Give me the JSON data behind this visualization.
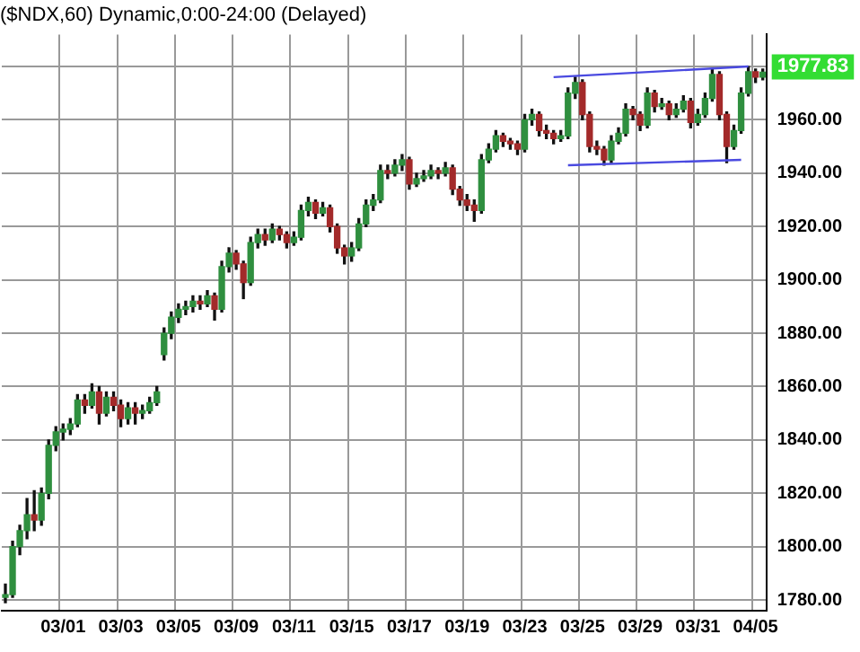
{
  "chart_data": {
    "type": "candlestick",
    "title": "($NDX,60) Dynamic,0:00-24:00 (Delayed)",
    "categories": [
      null,
      null,
      null,
      null,
      null,
      null,
      null,
      null,
      "03/01",
      null,
      null,
      null,
      null,
      null,
      null,
      null,
      "03/03",
      null,
      null,
      null,
      null,
      null,
      null,
      null,
      "03/05",
      null,
      null,
      null,
      null,
      null,
      null,
      null,
      "03/09",
      null,
      null,
      null,
      null,
      null,
      null,
      null,
      "03/11",
      null,
      null,
      null,
      null,
      null,
      null,
      null,
      "03/15",
      null,
      null,
      null,
      null,
      null,
      null,
      null,
      "03/17",
      null,
      null,
      null,
      null,
      null,
      null,
      null,
      "03/19",
      null,
      null,
      null,
      null,
      null,
      null,
      null,
      "03/23",
      null,
      null,
      null,
      null,
      null,
      null,
      null,
      "03/25",
      null,
      null,
      null,
      null,
      null,
      null,
      null,
      "03/29",
      null,
      null,
      null,
      null,
      null,
      null,
      null,
      "03/31",
      null,
      null,
      null,
      null,
      null,
      null,
      null,
      "04/05",
      null
    ],
    "ohlc": [
      [
        1781,
        1786,
        1779,
        1782
      ],
      [
        1782,
        1802,
        1781,
        1800
      ],
      [
        1800,
        1808,
        1797,
        1806
      ],
      [
        1806,
        1818,
        1803,
        1812
      ],
      [
        1812,
        1821,
        1806,
        1810
      ],
      [
        1810,
        1822,
        1808,
        1820
      ],
      [
        1820,
        1840,
        1818,
        1838
      ],
      [
        1838,
        1845,
        1836,
        1843
      ],
      [
        1843,
        1846,
        1840,
        1844
      ],
      [
        1844,
        1848,
        1842,
        1846
      ],
      [
        1846,
        1857,
        1845,
        1855
      ],
      [
        1855,
        1857,
        1850,
        1853
      ],
      [
        1853,
        1861,
        1852,
        1858
      ],
      [
        1858,
        1860,
        1846,
        1850
      ],
      [
        1850,
        1858,
        1849,
        1856
      ],
      [
        1856,
        1858,
        1851,
        1853
      ],
      [
        1853,
        1855,
        1845,
        1848
      ],
      [
        1848,
        1854,
        1846,
        1852
      ],
      [
        1852,
        1854,
        1846,
        1850
      ],
      [
        1850,
        1853,
        1848,
        1851
      ],
      [
        1851,
        1856,
        1850,
        1854
      ],
      [
        1854,
        1860,
        1853,
        1858
      ],
      [
        1872,
        1882,
        1870,
        1880
      ],
      [
        1880,
        1888,
        1878,
        1886
      ],
      [
        1886,
        1891,
        1884,
        1889
      ],
      [
        1889,
        1892,
        1887,
        1890
      ],
      [
        1890,
        1894,
        1888,
        1892
      ],
      [
        1892,
        1894,
        1889,
        1891
      ],
      [
        1891,
        1896,
        1890,
        1894
      ],
      [
        1894,
        1895,
        1885,
        1889
      ],
      [
        1889,
        1907,
        1888,
        1905
      ],
      [
        1905,
        1912,
        1903,
        1910
      ],
      [
        1910,
        1911,
        1904,
        1906
      ],
      [
        1906,
        1907,
        1893,
        1899
      ],
      [
        1899,
        1916,
        1898,
        1914
      ],
      [
        1914,
        1919,
        1912,
        1917
      ],
      [
        1917,
        1919,
        1913,
        1915
      ],
      [
        1915,
        1921,
        1914,
        1919
      ],
      [
        1919,
        1920,
        1915,
        1917
      ],
      [
        1917,
        1918,
        1912,
        1914
      ],
      [
        1914,
        1918,
        1913,
        1916
      ],
      [
        1916,
        1928,
        1915,
        1926
      ],
      [
        1926,
        1931,
        1924,
        1929
      ],
      [
        1929,
        1930,
        1923,
        1925
      ],
      [
        1925,
        1929,
        1924,
        1927
      ],
      [
        1927,
        1928,
        1918,
        1920
      ],
      [
        1920,
        1921,
        1910,
        1912
      ],
      [
        1912,
        1913,
        1906,
        1909
      ],
      [
        1909,
        1914,
        1907,
        1912
      ],
      [
        1912,
        1923,
        1911,
        1921
      ],
      [
        1921,
        1930,
        1920,
        1928
      ],
      [
        1928,
        1932,
        1926,
        1930
      ],
      [
        1930,
        1943,
        1929,
        1941
      ],
      [
        1941,
        1943,
        1938,
        1940
      ],
      [
        1940,
        1945,
        1939,
        1943
      ],
      [
        1943,
        1947,
        1941,
        1945
      ],
      [
        1945,
        1946,
        1934,
        1936
      ],
      [
        1936,
        1940,
        1935,
        1938
      ],
      [
        1938,
        1941,
        1937,
        1939
      ],
      [
        1939,
        1943,
        1938,
        1941
      ],
      [
        1941,
        1942,
        1938,
        1940
      ],
      [
        1940,
        1944,
        1939,
        1942
      ],
      [
        1942,
        1943,
        1932,
        1934
      ],
      [
        1934,
        1935,
        1928,
        1930
      ],
      [
        1930,
        1932,
        1926,
        1928
      ],
      [
        1928,
        1930,
        1922,
        1926
      ],
      [
        1926,
        1947,
        1925,
        1945
      ],
      [
        1945,
        1951,
        1944,
        1949
      ],
      [
        1949,
        1956,
        1948,
        1954
      ],
      [
        1954,
        1955,
        1950,
        1952
      ],
      [
        1952,
        1953,
        1949,
        1951
      ],
      [
        1951,
        1952,
        1947,
        1949
      ],
      [
        1949,
        1962,
        1948,
        1960
      ],
      [
        1960,
        1964,
        1958,
        1962
      ],
      [
        1962,
        1963,
        1954,
        1956
      ],
      [
        1956,
        1958,
        1953,
        1955
      ],
      [
        1955,
        1956,
        1951,
        1953
      ],
      [
        1953,
        1956,
        1952,
        1954
      ],
      [
        1954,
        1972,
        1953,
        1970
      ],
      [
        1970,
        1976,
        1968,
        1974
      ],
      [
        1974,
        1975,
        1960,
        1962
      ],
      [
        1962,
        1963,
        1948,
        1950
      ],
      [
        1950,
        1952,
        1947,
        1949
      ],
      [
        1949,
        1950,
        1943,
        1945
      ],
      [
        1945,
        1954,
        1944,
        1952
      ],
      [
        1952,
        1957,
        1951,
        1955
      ],
      [
        1955,
        1966,
        1954,
        1964
      ],
      [
        1964,
        1965,
        1960,
        1962
      ],
      [
        1962,
        1963,
        1956,
        1958
      ],
      [
        1958,
        1972,
        1957,
        1970
      ],
      [
        1970,
        1971,
        1963,
        1965
      ],
      [
        1965,
        1968,
        1964,
        1966
      ],
      [
        1966,
        1967,
        1960,
        1962
      ],
      [
        1962,
        1966,
        1961,
        1964
      ],
      [
        1964,
        1969,
        1963,
        1967
      ],
      [
        1967,
        1968,
        1957,
        1959
      ],
      [
        1959,
        1964,
        1958,
        1962
      ],
      [
        1962,
        1970,
        1961,
        1968
      ],
      [
        1968,
        1979,
        1967,
        1977
      ],
      [
        1977,
        1978,
        1960,
        1962
      ],
      [
        1962,
        1963,
        1944,
        1950
      ],
      [
        1950,
        1958,
        1949,
        1956
      ],
      [
        1956,
        1972,
        1955,
        1970
      ],
      [
        1970,
        1980,
        1969,
        1978
      ],
      [
        1978,
        1979,
        1974,
        1976
      ],
      [
        1976,
        1979,
        1975,
        1977.83
      ]
    ],
    "series": [
      {
        "type": "line",
        "color": "#4a4ae0",
        "values": [
          null,
          null,
          null,
          null,
          null,
          null,
          null,
          null,
          null,
          null,
          null,
          null,
          null,
          null,
          null,
          null,
          null,
          null,
          null,
          null,
          null,
          null,
          null,
          null,
          null,
          null,
          null,
          null,
          null,
          null,
          null,
          null,
          null,
          null,
          null,
          null,
          null,
          null,
          null,
          null,
          null,
          null,
          null,
          null,
          null,
          null,
          null,
          null,
          null,
          null,
          null,
          null,
          null,
          null,
          null,
          null,
          null,
          null,
          null,
          null,
          null,
          null,
          null,
          null,
          null,
          null,
          null,
          null,
          null,
          null,
          null,
          null,
          null,
          null,
          null,
          null,
          1976,
          null,
          null,
          null,
          null,
          null,
          null,
          null,
          null,
          null,
          null,
          null,
          null,
          null,
          null,
          null,
          null,
          null,
          null,
          null,
          null,
          null,
          null,
          null,
          null,
          null,
          null,
          1980,
          null,
          null
        ]
      },
      {
        "type": "line",
        "color": "#4a4ae0",
        "values": [
          null,
          null,
          null,
          null,
          null,
          null,
          null,
          null,
          null,
          null,
          null,
          null,
          null,
          null,
          null,
          null,
          null,
          null,
          null,
          null,
          null,
          null,
          null,
          null,
          null,
          null,
          null,
          null,
          null,
          null,
          null,
          null,
          null,
          null,
          null,
          null,
          null,
          null,
          null,
          null,
          null,
          null,
          null,
          null,
          null,
          null,
          null,
          null,
          null,
          null,
          null,
          null,
          null,
          null,
          null,
          null,
          null,
          null,
          null,
          null,
          null,
          null,
          null,
          null,
          null,
          null,
          null,
          null,
          null,
          null,
          null,
          null,
          null,
          null,
          null,
          null,
          null,
          null,
          1943,
          null,
          null,
          null,
          null,
          null,
          null,
          null,
          null,
          null,
          null,
          null,
          null,
          null,
          null,
          null,
          null,
          null,
          null,
          null,
          null,
          null,
          null,
          null,
          1945,
          null,
          null,
          null
        ]
      }
    ],
    "ylim": [
      1776,
      1992
    ],
    "yticks": [
      {
        "value": 1780,
        "label": "1780.00"
      },
      {
        "value": 1800,
        "label": "1800.00"
      },
      {
        "value": 1820,
        "label": "1820.00"
      },
      {
        "value": 1840,
        "label": "1840.00"
      },
      {
        "value": 1860,
        "label": "1860.00"
      },
      {
        "value": 1880,
        "label": "1880.00"
      },
      {
        "value": 1900,
        "label": "1900.00"
      },
      {
        "value": 1920,
        "label": "1920.00"
      },
      {
        "value": 1940,
        "label": "1940.00"
      },
      {
        "value": 1960,
        "label": "1960.00"
      },
      {
        "value": 1980,
        "label": null
      }
    ],
    "annotations": [
      "1977.83"
    ],
    "grid": true,
    "legend": false
  }
}
